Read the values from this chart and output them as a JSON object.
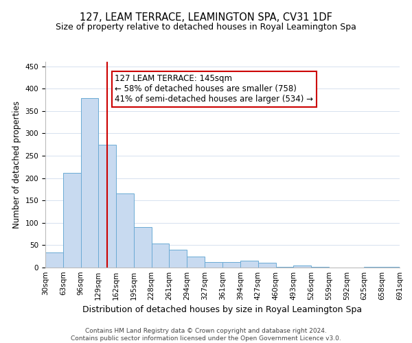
{
  "title": "127, LEAM TERRACE, LEAMINGTON SPA, CV31 1DF",
  "subtitle": "Size of property relative to detached houses in Royal Leamington Spa",
  "xlabel": "Distribution of detached houses by size in Royal Leamington Spa",
  "ylabel": "Number of detached properties",
  "bar_color": "#c8daf0",
  "bar_edge_color": "#6aaad4",
  "bin_edges": [
    30,
    63,
    96,
    129,
    162,
    195,
    228,
    261,
    294,
    327,
    361,
    394,
    427,
    460,
    493,
    526,
    559,
    592,
    625,
    658,
    691
  ],
  "bar_heights": [
    34,
    211,
    379,
    275,
    165,
    91,
    53,
    40,
    24,
    13,
    13,
    15,
    10,
    2,
    5,
    1,
    0,
    0,
    1,
    2
  ],
  "property_size": 145,
  "vline_color": "#cc0000",
  "annotation_line1": "127 LEAM TERRACE: 145sqm",
  "annotation_line2": "← 58% of detached houses are smaller (758)",
  "annotation_line3": "41% of semi-detached houses are larger (534) →",
  "annotation_box_color": "#ffffff",
  "annotation_box_edge": "#cc0000",
  "ylim": [
    0,
    460
  ],
  "yticks": [
    0,
    50,
    100,
    150,
    200,
    250,
    300,
    350,
    400,
    450
  ],
  "tick_labels": [
    "30sqm",
    "63sqm",
    "96sqm",
    "129sqm",
    "162sqm",
    "195sqm",
    "228sqm",
    "261sqm",
    "294sqm",
    "327sqm",
    "361sqm",
    "394sqm",
    "427sqm",
    "460sqm",
    "493sqm",
    "526sqm",
    "559sqm",
    "592sqm",
    "625sqm",
    "658sqm",
    "691sqm"
  ],
  "footer": "Contains HM Land Registry data © Crown copyright and database right 2024.\nContains public sector information licensed under the Open Government Licence v3.0.",
  "title_fontsize": 10.5,
  "subtitle_fontsize": 9,
  "xlabel_fontsize": 9,
  "ylabel_fontsize": 8.5,
  "tick_fontsize": 7.5,
  "annotation_fontsize": 8.5,
  "footer_fontsize": 6.5
}
